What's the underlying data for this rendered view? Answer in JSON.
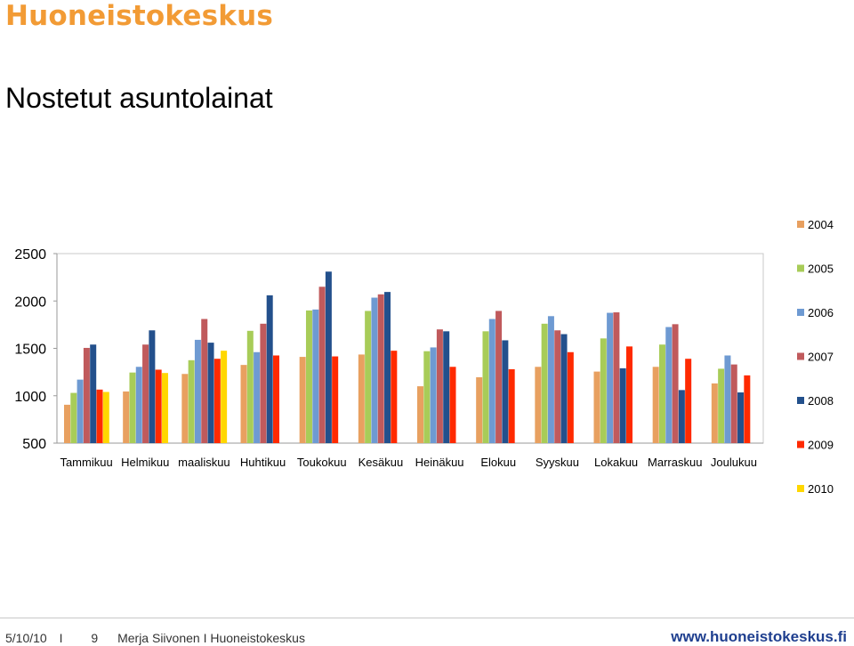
{
  "header": {
    "brand": "Huoneistokeskus",
    "title": "Nostetut asuntolainat"
  },
  "footer": {
    "date": "5/10/10",
    "separator": "I",
    "page": "9",
    "author": "Merja Siivonen I Huoneistokeskus",
    "url": "www.huoneistokeskus.fi"
  },
  "chart_data": {
    "type": "bar",
    "ylim": [
      500,
      2500
    ],
    "yticks": [
      500,
      1000,
      1500,
      2000,
      2500
    ],
    "categories": [
      "Tammikuu",
      "Helmikuu",
      "maaliskuu",
      "Huhtikuu",
      "Toukokuu",
      "Kesäkuu",
      "Heinäkuu",
      "Elokuu",
      "Syyskuu",
      "Lokakuu",
      "Marraskuu",
      "Joulukuu"
    ],
    "legend_position": "right",
    "series": [
      {
        "name": "2004",
        "color": "#e8a060",
        "values": [
          905,
          1045,
          1230,
          1325,
          1410,
          1435,
          1100,
          1195,
          1305,
          1255,
          1305,
          1130
        ]
      },
      {
        "name": "2005",
        "color": "#a8cc58",
        "values": [
          1030,
          1245,
          1375,
          1685,
          1900,
          1895,
          1470,
          1680,
          1760,
          1605,
          1540,
          1285
        ]
      },
      {
        "name": "2006",
        "color": "#6e9ad2",
        "values": [
          1170,
          1305,
          1590,
          1460,
          1910,
          2035,
          1510,
          1810,
          1840,
          1875,
          1725,
          1425
        ]
      },
      {
        "name": "2007",
        "color": "#c05a5c",
        "values": [
          1505,
          1540,
          1810,
          1760,
          2150,
          2070,
          1700,
          1895,
          1690,
          1880,
          1755,
          1330
        ]
      },
      {
        "name": "2008",
        "color": "#23508c",
        "values": [
          1540,
          1690,
          1560,
          2060,
          2310,
          2095,
          1680,
          1585,
          1650,
          1290,
          1060,
          1035
        ]
      },
      {
        "name": "2009",
        "color": "#ff2a00",
        "values": [
          1065,
          1275,
          1390,
          1425,
          1415,
          1475,
          1305,
          1280,
          1460,
          1520,
          1390,
          1215
        ]
      },
      {
        "name": "2010",
        "color": "#ffd700",
        "values": [
          1040,
          1240,
          1475,
          null,
          null,
          null,
          null,
          null,
          null,
          null,
          null,
          null
        ]
      }
    ]
  }
}
